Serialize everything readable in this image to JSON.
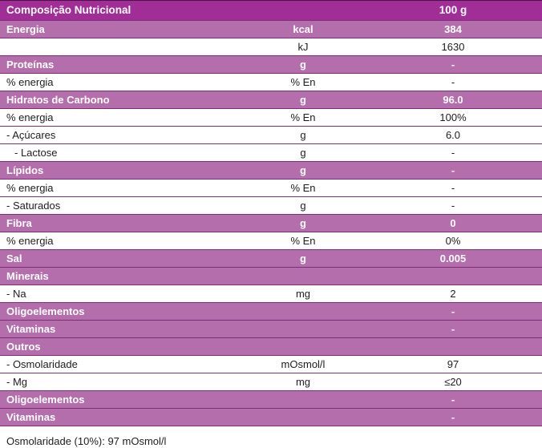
{
  "colors": {
    "header_bg": "#a12d97",
    "section_bg": "#b56eac",
    "border": "#7e2d79",
    "top_border": "#4a1245",
    "header_text": "#ffffff",
    "body_text": "#1d1d1d"
  },
  "table": {
    "title": "Composição Nutricional",
    "serving": "100 g",
    "rows": [
      {
        "label": "Energia",
        "unit": "kcal",
        "value": "384",
        "type": "highlight",
        "indent": 0
      },
      {
        "label": "",
        "unit": "kJ",
        "value": "1630",
        "type": "plain",
        "indent": 0
      },
      {
        "label": "Proteínas",
        "unit": "g",
        "value": "-",
        "type": "highlight",
        "indent": 0
      },
      {
        "label": "% energia",
        "unit": "% En",
        "value": "-",
        "type": "plain",
        "indent": 0
      },
      {
        "label": "Hidratos de Carbono",
        "unit": "g",
        "value": "96.0",
        "type": "highlight",
        "indent": 0
      },
      {
        "label": "% energia",
        "unit": "% En",
        "value": "100%",
        "type": "plain",
        "indent": 0
      },
      {
        "label": "- Açúcares",
        "unit": "g",
        "value": "6.0",
        "type": "plain",
        "indent": 0
      },
      {
        "label": "- Lactose",
        "unit": "g",
        "value": "-",
        "type": "plain",
        "indent": 1
      },
      {
        "label": "Lípidos",
        "unit": "g",
        "value": "-",
        "type": "highlight",
        "indent": 0
      },
      {
        "label": "% energia",
        "unit": "% En",
        "value": "-",
        "type": "plain",
        "indent": 0
      },
      {
        "label": "- Saturados",
        "unit": "g",
        "value": "-",
        "type": "plain",
        "indent": 0
      },
      {
        "label": "Fibra",
        "unit": "g",
        "value": "0",
        "type": "highlight",
        "indent": 0
      },
      {
        "label": "% energia",
        "unit": "% En",
        "value": "0%",
        "type": "plain",
        "indent": 0
      },
      {
        "label": "Sal",
        "unit": "g",
        "value": "0.005",
        "type": "highlight",
        "indent": 0
      },
      {
        "label": "Minerais",
        "unit": "",
        "value": "",
        "type": "highlight",
        "indent": 0
      },
      {
        "label": "- Na",
        "unit": "mg",
        "value": "2",
        "type": "plain",
        "indent": 0
      },
      {
        "label": "Oligoelementos",
        "unit": "",
        "value": "-",
        "type": "highlight",
        "indent": 0
      },
      {
        "label": "Vitaminas",
        "unit": "",
        "value": "-",
        "type": "highlight",
        "indent": 0
      },
      {
        "label": "Outros",
        "unit": "",
        "value": "",
        "type": "highlight",
        "indent": 0
      },
      {
        "label": "- Osmolaridade",
        "unit": "mOsmol/l",
        "value": "97",
        "type": "plain",
        "indent": 0
      },
      {
        "label": "- Mg",
        "unit": "mg",
        "value": "≤20",
        "type": "plain",
        "indent": 0
      },
      {
        "label": "Oligoelementos",
        "unit": "",
        "value": "-",
        "type": "highlight",
        "indent": 0
      },
      {
        "label": "Vitaminas",
        "unit": "",
        "value": "-",
        "type": "highlight",
        "indent": 0
      }
    ],
    "footer": "Osmolaridade (10%): 97 mOsmol/l"
  }
}
